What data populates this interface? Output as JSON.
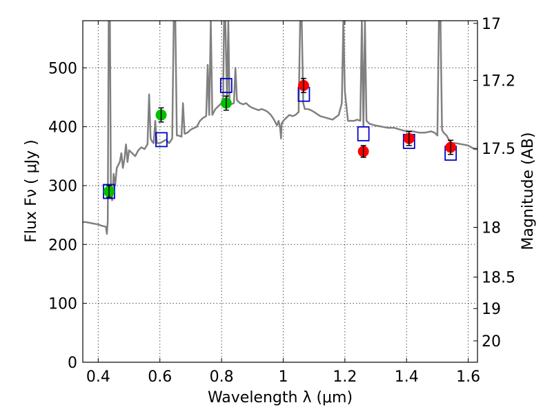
{
  "chart_data": {
    "type": "scatter",
    "title": "",
    "xlabel": "Wavelength  λ (μm)",
    "ylabel": "Flux  Fν  ( μJy )",
    "y2label": "Magnitude (AB)",
    "xlim": [
      0.35,
      1.63
    ],
    "ylim": [
      0,
      580
    ],
    "xticks": [
      {
        "v": 0.4,
        "label": "0.4"
      },
      {
        "v": 0.6,
        "label": "0.6"
      },
      {
        "v": 0.8,
        "label": "0.8"
      },
      {
        "v": 1.0,
        "label": "1"
      },
      {
        "v": 1.2,
        "label": "1.2"
      },
      {
        "v": 1.4,
        "label": "1.4"
      },
      {
        "v": 1.6,
        "label": "1.6"
      }
    ],
    "yticks": [
      {
        "v": 0,
        "label": "0"
      },
      {
        "v": 100,
        "label": "100"
      },
      {
        "v": 200,
        "label": "200"
      },
      {
        "v": 300,
        "label": "300"
      },
      {
        "v": 400,
        "label": "400"
      },
      {
        "v": 500,
        "label": "500"
      }
    ],
    "y2ticks": [
      {
        "mag": 17,
        "label": "17"
      },
      {
        "mag": 17.2,
        "label": "17.2"
      },
      {
        "mag": 17.5,
        "label": "17.5"
      },
      {
        "mag": 18,
        "label": "18"
      },
      {
        "mag": 18.5,
        "label": "18.5"
      },
      {
        "mag": 19,
        "label": "19"
      },
      {
        "mag": 20,
        "label": "20"
      }
    ],
    "grid": true,
    "colors": {
      "spectrum": "#808080",
      "green_points": "#00c000",
      "red_points": "#ff0000",
      "model_squares": "#0000cc",
      "errorbars": "#000000"
    },
    "series": [
      {
        "type": "line",
        "points": [
          [
            0.35,
            238
          ],
          [
            0.36,
            238
          ],
          [
            0.38,
            236
          ],
          [
            0.4,
            234
          ],
          [
            0.41,
            232
          ],
          [
            0.425,
            230
          ],
          [
            0.428,
            218
          ],
          [
            0.431,
            240
          ],
          [
            0.434,
            580
          ],
          [
            0.438,
            580
          ],
          [
            0.441,
            300
          ],
          [
            0.445,
            275
          ],
          [
            0.45,
            320
          ],
          [
            0.455,
            300
          ],
          [
            0.46,
            330
          ],
          [
            0.47,
            340
          ],
          [
            0.475,
            355
          ],
          [
            0.48,
            330
          ],
          [
            0.485,
            345
          ],
          [
            0.49,
            370
          ],
          [
            0.495,
            340
          ],
          [
            0.5,
            360
          ],
          [
            0.51,
            355
          ],
          [
            0.52,
            350
          ],
          [
            0.53,
            360
          ],
          [
            0.54,
            365
          ],
          [
            0.55,
            362
          ],
          [
            0.56,
            370
          ],
          [
            0.565,
            455
          ],
          [
            0.57,
            380
          ],
          [
            0.575,
            375
          ],
          [
            0.58,
            372
          ],
          [
            0.585,
            410
          ],
          [
            0.59,
            372
          ],
          [
            0.6,
            372
          ],
          [
            0.61,
            375
          ],
          [
            0.62,
            378
          ],
          [
            0.63,
            372
          ],
          [
            0.64,
            380
          ],
          [
            0.645,
            580
          ],
          [
            0.65,
            580
          ],
          [
            0.655,
            385
          ],
          [
            0.66,
            385
          ],
          [
            0.67,
            383
          ],
          [
            0.675,
            440
          ],
          [
            0.68,
            388
          ],
          [
            0.69,
            390
          ],
          [
            0.7,
            395
          ],
          [
            0.72,
            400
          ],
          [
            0.73,
            410
          ],
          [
            0.74,
            415
          ],
          [
            0.75,
            418
          ],
          [
            0.755,
            505
          ],
          [
            0.76,
            420
          ],
          [
            0.765,
            580
          ],
          [
            0.77,
            420
          ],
          [
            0.775,
            425
          ],
          [
            0.78,
            430
          ],
          [
            0.79,
            435
          ],
          [
            0.8,
            440
          ],
          [
            0.805,
            438
          ],
          [
            0.808,
            580
          ],
          [
            0.812,
            580
          ],
          [
            0.818,
            445
          ],
          [
            0.822,
            580
          ],
          [
            0.826,
            440
          ],
          [
            0.83,
            438
          ],
          [
            0.84,
            440
          ],
          [
            0.845,
            500
          ],
          [
            0.85,
            445
          ],
          [
            0.86,
            440
          ],
          [
            0.87,
            438
          ],
          [
            0.88,
            440
          ],
          [
            0.89,
            435
          ],
          [
            0.9,
            432
          ],
          [
            0.91,
            430
          ],
          [
            0.92,
            428
          ],
          [
            0.93,
            430
          ],
          [
            0.94,
            428
          ],
          [
            0.95,
            425
          ],
          [
            0.96,
            420
          ],
          [
            0.97,
            412
          ],
          [
            0.98,
            402
          ],
          [
            0.985,
            410
          ],
          [
            0.99,
            398
          ],
          [
            0.993,
            380
          ],
          [
            0.995,
            405
          ],
          [
            1.0,
            410
          ],
          [
            1.01,
            415
          ],
          [
            1.02,
            420
          ],
          [
            1.03,
            418
          ],
          [
            1.04,
            420
          ],
          [
            1.05,
            425
          ],
          [
            1.055,
            580
          ],
          [
            1.06,
            580
          ],
          [
            1.065,
            440
          ],
          [
            1.07,
            430
          ],
          [
            1.08,
            430
          ],
          [
            1.09,
            428
          ],
          [
            1.1,
            425
          ],
          [
            1.12,
            418
          ],
          [
            1.14,
            415
          ],
          [
            1.16,
            412
          ],
          [
            1.18,
            420
          ],
          [
            1.19,
            440
          ],
          [
            1.195,
            580
          ],
          [
            1.2,
            460
          ],
          [
            1.21,
            410
          ],
          [
            1.22,
            410
          ],
          [
            1.23,
            410
          ],
          [
            1.24,
            412
          ],
          [
            1.25,
            410
          ],
          [
            1.255,
            580
          ],
          [
            1.26,
            400
          ],
          [
            1.265,
            580
          ],
          [
            1.27,
            410
          ],
          [
            1.28,
            405
          ],
          [
            1.3,
            402
          ],
          [
            1.32,
            400
          ],
          [
            1.34,
            398
          ],
          [
            1.36,
            398
          ],
          [
            1.38,
            395
          ],
          [
            1.4,
            392
          ],
          [
            1.42,
            392
          ],
          [
            1.44,
            390
          ],
          [
            1.46,
            390
          ],
          [
            1.48,
            392
          ],
          [
            1.49,
            390
          ],
          [
            1.495,
            388
          ],
          [
            1.5,
            385
          ],
          [
            1.505,
            580
          ],
          [
            1.51,
            580
          ],
          [
            1.515,
            395
          ],
          [
            1.52,
            390
          ],
          [
            1.53,
            385
          ],
          [
            1.54,
            375
          ],
          [
            1.55,
            372
          ],
          [
            1.56,
            372
          ],
          [
            1.58,
            370
          ],
          [
            1.6,
            368
          ],
          [
            1.61,
            365
          ],
          [
            1.62,
            362
          ],
          [
            1.63,
            362
          ]
        ]
      },
      {
        "type": "errorbar",
        "points": [
          {
            "x": 0.435,
            "y": 290,
            "err": 10
          },
          {
            "x": 0.604,
            "y": 420,
            "err": 12
          },
          {
            "x": 0.815,
            "y": 440,
            "err": 12
          }
        ]
      },
      {
        "type": "errorbar",
        "points": [
          {
            "x": 1.066,
            "y": 470,
            "err": 12
          },
          {
            "x": 1.26,
            "y": 358,
            "err": 10
          },
          {
            "x": 1.408,
            "y": 380,
            "err": 12
          },
          {
            "x": 1.543,
            "y": 365,
            "err": 12
          }
        ]
      },
      {
        "type": "marker",
        "points": [
          [
            0.435,
            290
          ],
          [
            0.605,
            378
          ],
          [
            0.815,
            470
          ],
          [
            1.067,
            455
          ],
          [
            1.26,
            388
          ],
          [
            1.408,
            375
          ],
          [
            1.543,
            355
          ]
        ]
      }
    ]
  }
}
